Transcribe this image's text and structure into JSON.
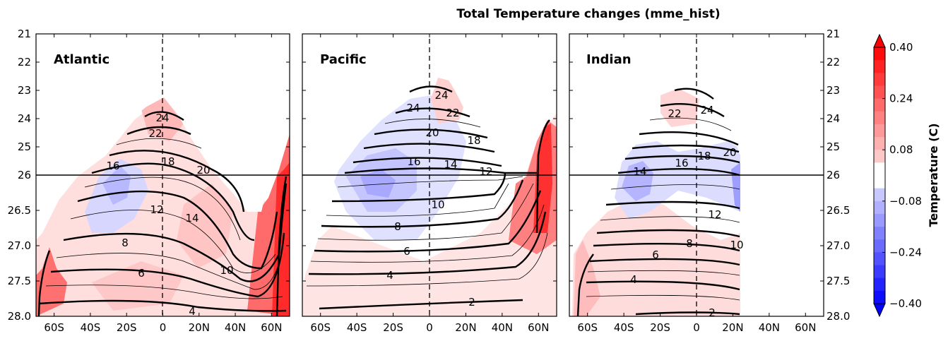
{
  "chart_data": {
    "type": "contour",
    "title": "Total Temperature changes (mme_hist)",
    "y_axis": {
      "ticks_upper": [
        "21",
        "22",
        "23",
        "24",
        "25",
        "26"
      ],
      "ticks_lower": [
        "26",
        "26.5",
        "27.0",
        "27.5",
        "28.0"
      ],
      "range_upper": [
        21,
        26
      ],
      "range_lower": [
        26,
        28
      ],
      "inverted": true
    },
    "x_axis": {
      "ticks": [
        "60S",
        "40S",
        "20S",
        "0",
        "20N",
        "40N",
        "60N"
      ],
      "tick_values": [
        -60,
        -40,
        -20,
        0,
        20,
        40,
        60
      ],
      "range": [
        -70,
        70
      ]
    },
    "colorbar": {
      "label": "Temperature (C)",
      "range": [
        -0.4,
        0.4
      ],
      "tick_labels": [
        "0.40",
        "0.24",
        "0.08",
        "−0.08",
        "−0.24",
        "−0.40"
      ],
      "tick_values": [
        0.4,
        0.24,
        0.08,
        -0.08,
        -0.24,
        -0.4
      ],
      "levels": [
        -0.4,
        -0.36,
        -0.32,
        -0.28,
        -0.24,
        -0.2,
        -0.16,
        -0.12,
        -0.08,
        -0.04,
        0,
        0.04,
        0.08,
        0.12,
        0.16,
        0.2,
        0.24,
        0.28,
        0.32,
        0.36,
        0.4
      ]
    },
    "panels": [
      {
        "name": "Atlantic",
        "contour_labels": [
          "24",
          "22",
          "16",
          "18",
          "20",
          "12",
          "14",
          "8",
          "6",
          "10",
          "4"
        ],
        "dome_top": [
          [
            -10,
            28
          ],
          [
            -5,
            25.4
          ],
          [
            0,
            23.4
          ],
          [
            10,
            24.8
          ],
          [
            30,
            26.6
          ],
          [
            45,
            27.5
          ],
          [
            55,
            27.4
          ],
          [
            62,
            26.0
          ],
          [
            68,
            25.1
          ],
          [
            70,
            23.3
          ]
        ]
      },
      {
        "name": "Pacific",
        "contour_labels": [
          "24",
          "24",
          "22",
          "20",
          "18",
          "16",
          "14",
          "12",
          "10",
          "8",
          "6",
          "4",
          "2"
        ],
        "dome_top": [
          [
            -65,
            28
          ],
          [
            -45,
            26.8
          ],
          [
            -20,
            25.0
          ],
          [
            0,
            23.4
          ],
          [
            10,
            22.4
          ],
          [
            30,
            25.2
          ],
          [
            50,
            26.0
          ],
          [
            60,
            25.0
          ],
          [
            65,
            24.2
          ],
          [
            70,
            24.0
          ]
        ]
      },
      {
        "name": "Indian",
        "contour_labels": [
          "22",
          "24",
          "18",
          "20",
          "16",
          "14",
          "12",
          "8",
          "10",
          "6",
          "4",
          "2"
        ],
        "dome_top": [
          [
            -65,
            28
          ],
          [
            -45,
            27.0
          ],
          [
            -30,
            25.0
          ],
          [
            -10,
            23.2
          ],
          [
            5,
            23.6
          ],
          [
            15,
            24.6
          ],
          [
            23,
            26.0
          ],
          [
            23,
            28.0
          ]
        ]
      }
    ]
  }
}
